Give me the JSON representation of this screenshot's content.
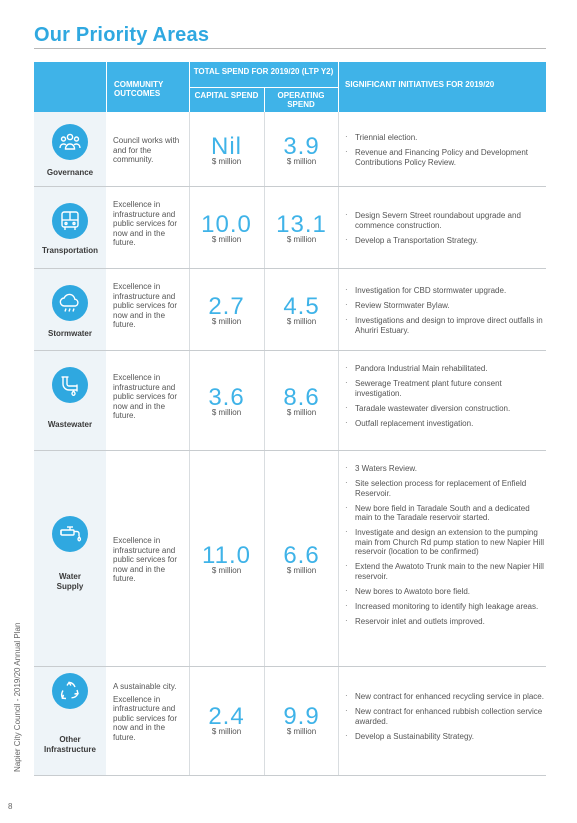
{
  "page_title": "Our Priority Areas",
  "header": {
    "community_outcomes": "COMMUNITY OUTCOMES",
    "total_spend": "TOTAL SPEND FOR 2019/20 (LTP Y2)",
    "capital_spend": "CAPITAL SPEND",
    "operating_spend": "OPERATING SPEND",
    "significant_initiatives": "SIGNIFICANT INITIATIVES FOR 2019/20"
  },
  "rows": [
    {
      "name": "Governance",
      "icon": "people-group-icon",
      "outcomes": [
        "Council works with and for the community."
      ],
      "capital": "Nil",
      "capital_unit": "$ million",
      "operating": "3.9",
      "operating_unit": "$ million",
      "initiatives": [
        "Triennial election.",
        "Revenue and Financing Policy and Development Contributions Policy Review."
      ]
    },
    {
      "name": "Transportation",
      "icon": "bus-icon",
      "outcomes": [
        "Excellence in infrastructure and public services for now and in the future."
      ],
      "capital": "10.0",
      "capital_unit": "$ million",
      "operating": "13.1",
      "operating_unit": "$ million",
      "initiatives": [
        "Design Severn Street roundabout upgrade and commence construction.",
        "Develop a Transportation Strategy."
      ]
    },
    {
      "name": "Stormwater",
      "icon": "rain-cloud-icon",
      "outcomes": [
        "Excellence in infrastructure and public services for now and in the future."
      ],
      "capital": "2.7",
      "capital_unit": "$ million",
      "operating": "4.5",
      "operating_unit": "$ million",
      "initiatives": [
        "Investigation for CBD stormwater upgrade.",
        "Review Stormwater Bylaw.",
        "Investigations and design to improve direct outfalls in Ahuriri Estuary."
      ]
    },
    {
      "name": "Wastewater",
      "icon": "pipe-icon",
      "outcomes": [
        "Excellence in infrastructure and public services for now and in the future."
      ],
      "capital": "3.6",
      "capital_unit": "$ million",
      "operating": "8.6",
      "operating_unit": "$ million",
      "initiatives": [
        "Pandora Industrial Main rehabilitated.",
        "Sewerage Treatment plant future consent investigation.",
        "Taradale wastewater diversion construction.",
        "Outfall replacement investigation."
      ]
    },
    {
      "name": "Water Supply",
      "icon": "water-tap-icon",
      "outcomes": [
        "Excellence in infrastructure and public services for now and in the future."
      ],
      "capital": "11.0",
      "capital_unit": "$ million",
      "operating": "6.6",
      "operating_unit": "$ million",
      "initiatives": [
        "3 Waters Review.",
        "Site selection process for replacement of Enfield Reservoir.",
        "New bore field in Taradale South and a dedicated main to the Taradale reservoir started.",
        "Investigate and design an extension to the pumping main from Church Rd pump station to new Napier Hill reservoir (location to be confirmed)",
        "Extend the Awatoto Trunk main to the new Napier Hill reservoir.",
        "New bores to Awatoto bore field.",
        "Increased monitoring to identify high leakage areas.",
        "Reservoir inlet and outlets improved."
      ]
    },
    {
      "name": "Other Infrastructure",
      "icon": "recycle-icon",
      "outcomes": [
        "A sustainable city.",
        "Excellence in infrastructure and public services for now and in the future."
      ],
      "capital": "2.4",
      "capital_unit": "$ million",
      "operating": "9.9",
      "operating_unit": "$ million",
      "initiatives": [
        "New contract for enhanced recycling service in place.",
        "New contract for enhanced rubbish collection service awarded.",
        "Develop a Sustainability Strategy."
      ]
    }
  ],
  "side_text": "Napier City Council - 2019/20 Annual Plan",
  "page_number": "8",
  "colors": {
    "accent": "#3fb3e8",
    "title": "#2fa8e0",
    "band": "#eef4f8"
  }
}
